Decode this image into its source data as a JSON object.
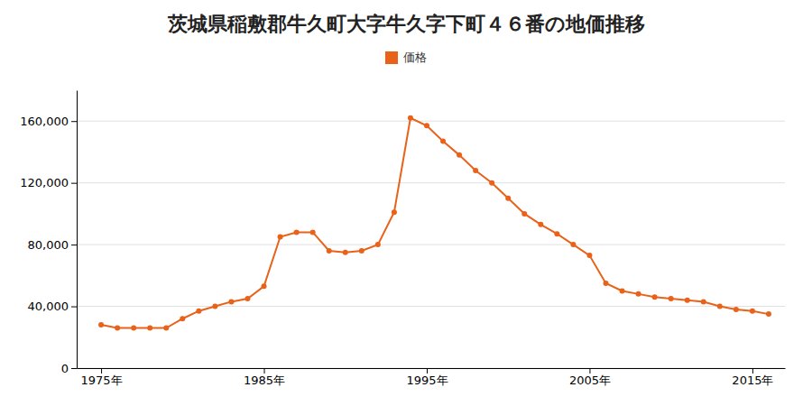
{
  "chart_data": {
    "type": "line",
    "title": "茨城県稲敷郡牛久町大字牛久字下町４６番の地価推移",
    "x": [
      1975,
      1976,
      1977,
      1978,
      1979,
      1980,
      1981,
      1982,
      1983,
      1984,
      1985,
      1986,
      1987,
      1988,
      1989,
      1990,
      1991,
      1992,
      1993,
      1994,
      1995,
      1996,
      1997,
      1998,
      1999,
      2000,
      2001,
      2002,
      2003,
      2004,
      2005,
      2006,
      2007,
      2008,
      2009,
      2010,
      2011,
      2012,
      2013,
      2014,
      2015,
      2016
    ],
    "series": [
      {
        "name": "価格",
        "color": "#e8621a",
        "marker": "circle",
        "values": [
          28000,
          26000,
          26000,
          26000,
          26000,
          32000,
          37000,
          40000,
          43000,
          45000,
          53000,
          85000,
          88000,
          88000,
          76000,
          75000,
          76000,
          80000,
          101000,
          162000,
          157000,
          147000,
          138000,
          128000,
          120000,
          110000,
          100000,
          93000,
          87000,
          80000,
          73000,
          55000,
          50000,
          48000,
          46000,
          45000,
          44000,
          43000,
          40000,
          38000,
          37000,
          35000
        ]
      }
    ],
    "xlim": [
      1973.5,
      2017
    ],
    "xticks": [
      {
        "value": 1975,
        "label": "1975年"
      },
      {
        "value": 1985,
        "label": "1985年"
      },
      {
        "value": 1995,
        "label": "1995年"
      },
      {
        "value": 2005,
        "label": "2005年"
      },
      {
        "value": 2015,
        "label": "2015年"
      }
    ],
    "ylim": [
      0,
      180000
    ],
    "yticks": [
      0,
      {
        "value": 40000,
        "label": "40,000"
      },
      {
        "value": 80000,
        "label": "80,000"
      },
      {
        "value": 120000,
        "label": "120,000"
      },
      {
        "value": 160000,
        "label": "160,000"
      }
    ],
    "grid": true,
    "legend": "top"
  }
}
